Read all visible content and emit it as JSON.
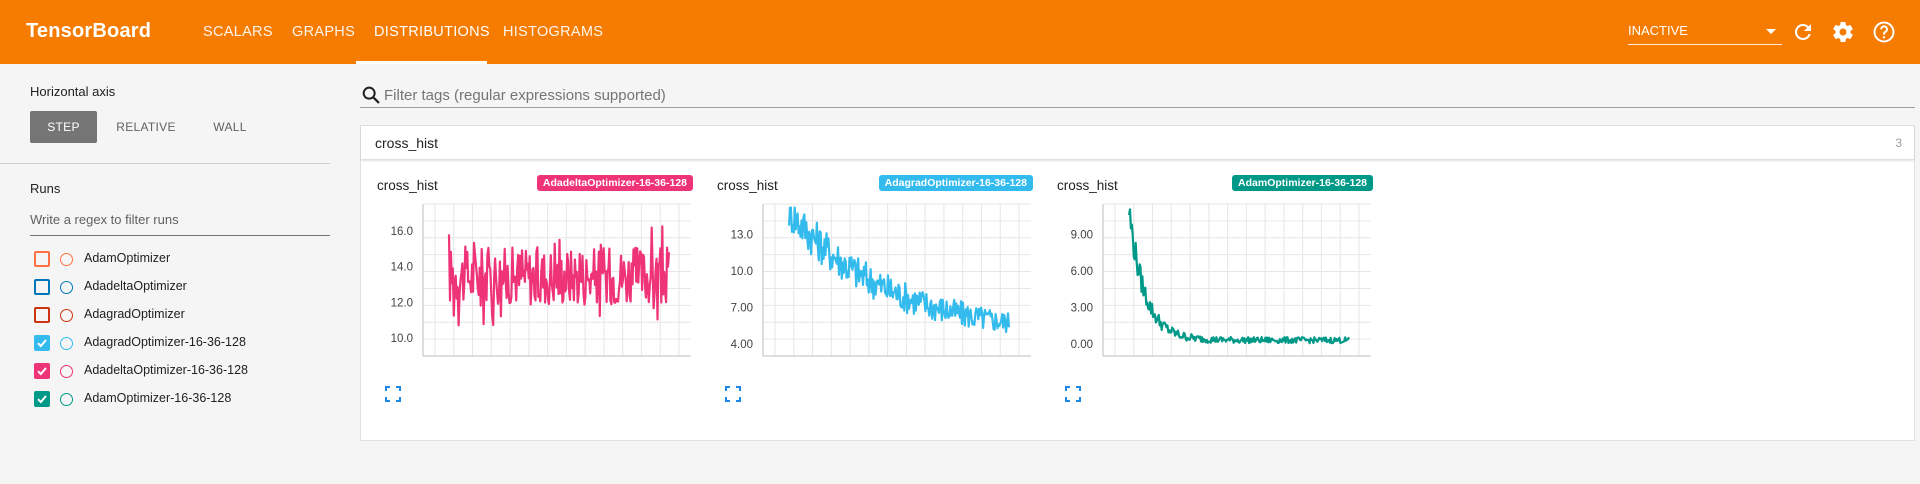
{
  "app": {
    "title": "TensorBoard"
  },
  "nav": {
    "tabs": [
      {
        "label": "SCALARS"
      },
      {
        "label": "GRAPHS"
      },
      {
        "label": "DISTRIBUTIONS",
        "active": true
      },
      {
        "label": "HISTOGRAMS"
      }
    ],
    "status": {
      "value": "INACTIVE"
    },
    "icons": [
      "refresh-icon",
      "gear-icon",
      "help-icon"
    ]
  },
  "sidebar": {
    "horizontal_axis": {
      "heading": "Horizontal axis",
      "options": [
        {
          "label": "STEP",
          "active": true
        },
        {
          "label": "RELATIVE"
        },
        {
          "label": "WALL"
        }
      ]
    },
    "runs": {
      "heading": "Runs",
      "filter_placeholder": "Write a regex to filter runs",
      "items": [
        {
          "label": "AdamOptimizer",
          "color": "#ff7043",
          "checked": false
        },
        {
          "label": "AdadeltaOptimizer",
          "color": "#0077bb",
          "checked": false
        },
        {
          "label": "AdagradOptimizer",
          "color": "#cc3311",
          "checked": false
        },
        {
          "label": "AdagradOptimizer-16-36-128",
          "color": "#33bbee",
          "checked": true
        },
        {
          "label": "AdadeltaOptimizer-16-36-128",
          "color": "#ee3377",
          "checked": true
        },
        {
          "label": "AdamOptimizer-16-36-128",
          "color": "#009988",
          "checked": true
        }
      ]
    }
  },
  "main": {
    "search_placeholder": "Filter tags (regular expressions supported)",
    "category": {
      "title": "cross_hist",
      "count": "3"
    },
    "panels": [
      {
        "title": "cross_hist",
        "run": "AdadeltaOptimizer-16-36-128",
        "color": "#ee3377",
        "chart_data": {
          "type": "line",
          "title": "cross_hist",
          "series": [
            {
              "name": "AdadeltaOptimizer-16-36-128",
              "pattern": "flat-noisy",
              "start": 13.5,
              "end": 13.5,
              "noise_low": 10.0,
              "noise_high": 16.8
            }
          ],
          "yticks": [
            "16.0",
            "14.0",
            "12.0",
            "10.0"
          ],
          "ylim": [
            9.0,
            17.5
          ],
          "grid": true
        }
      },
      {
        "title": "cross_hist",
        "run": "AdagradOptimizer-16-36-128",
        "color": "#33bbee",
        "chart_data": {
          "type": "line",
          "title": "cross_hist",
          "series": [
            {
              "name": "AdagradOptimizer-16-36-128",
              "pattern": "decay",
              "start": 15.0,
              "end": 4.6,
              "noise_low": 3.9,
              "noise_high": 15.2
            }
          ],
          "yticks": [
            "13.0",
            "10.0",
            "7.00",
            "4.00"
          ],
          "ylim": [
            3.0,
            15.5
          ],
          "grid": true
        }
      },
      {
        "title": "cross_hist",
        "run": "AdamOptimizer-16-36-128",
        "color": "#009988",
        "chart_data": {
          "type": "line",
          "title": "cross_hist",
          "series": [
            {
              "name": "AdamOptimizer-16-36-128",
              "pattern": "fast-decay",
              "start": 11.0,
              "end": 0.3,
              "noise_low": -0.1,
              "noise_high": 11.2
            }
          ],
          "yticks": [
            "9.00",
            "6.00",
            "3.00",
            "0.00"
          ],
          "ylim": [
            -1.0,
            11.5
          ],
          "grid": true
        }
      }
    ]
  }
}
